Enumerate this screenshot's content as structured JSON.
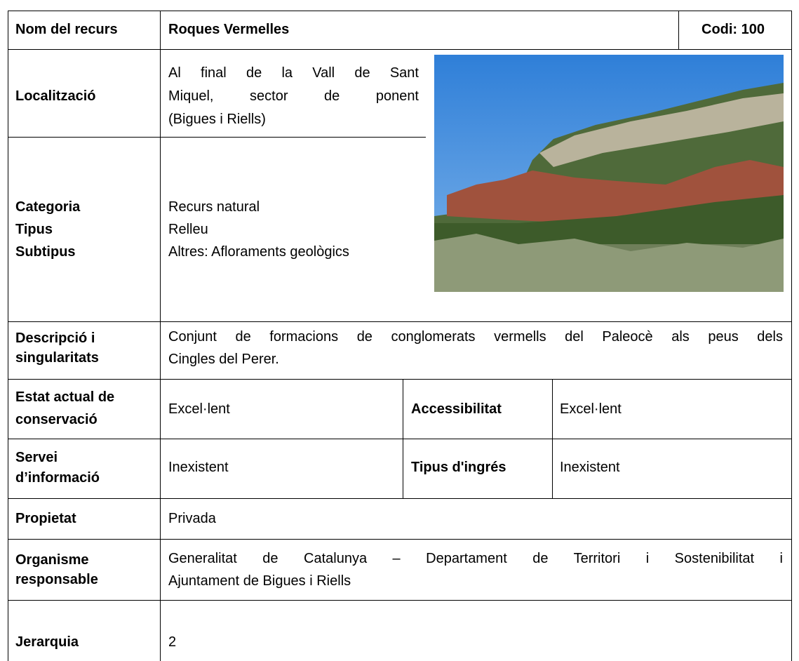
{
  "header": {
    "label": "Nom del recurs",
    "name": "Roques Vermelles",
    "code": "Codi: 100"
  },
  "location": {
    "label": "Localització",
    "lines": [
      "Al final de la Vall de Sant",
      "Miquel, sector de ponent",
      "(Bigues i Riells)"
    ]
  },
  "category": {
    "labels": [
      "Categoria",
      "Tipus",
      "Subtipus"
    ],
    "values": [
      "Recurs natural",
      "Relleu",
      "Altres: Afloraments geològics"
    ]
  },
  "description": {
    "label": [
      "Descripció i",
      "singularitats"
    ],
    "lines": [
      "Conjunt de formacions de conglomerats vermells del Paleocè als peus dels",
      "Cingles del Perer."
    ]
  },
  "conservation": {
    "label": [
      "Estat actual de",
      "conservació"
    ],
    "value": "Excel·lent",
    "label2": "Accessibilitat",
    "value2": "Excel·lent"
  },
  "information": {
    "label": [
      "Servei",
      "d’informació"
    ],
    "value": "Inexistent",
    "label2": "Tipus d'ingrés",
    "value2": "Inexistent"
  },
  "property": {
    "label": "Propietat",
    "value": "Privada"
  },
  "organisation": {
    "label": [
      "Organisme",
      "responsable"
    ],
    "lines": [
      "Generalitat de Catalunya – Departament de Territori i Sostenibilitat i",
      "Ajuntament de Bigues i Riells"
    ]
  },
  "hierarchy": {
    "label": "Jerarquia",
    "value": "2"
  }
}
